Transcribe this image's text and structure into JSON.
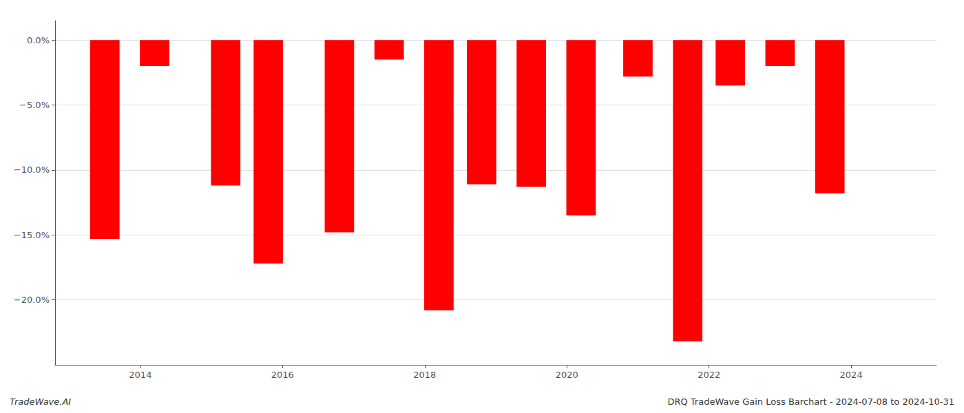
{
  "chart_data": {
    "type": "bar",
    "x": [
      2013.5,
      2014.2,
      2015.2,
      2015.8,
      2016.8,
      2017.5,
      2018.2,
      2018.8,
      2019.5,
      2020.2,
      2021.0,
      2021.7,
      2022.3,
      2023.0,
      2023.7
    ],
    "values": [
      -15.3,
      -2.0,
      -11.2,
      -17.2,
      -14.8,
      -1.5,
      -20.8,
      -11.1,
      -11.3,
      -13.5,
      -2.8,
      -23.2,
      -3.5,
      -2.0,
      -11.8
    ],
    "color": "#ff0000",
    "xlim": [
      2012.8,
      2025.2
    ],
    "xticks": [
      2014,
      2016,
      2018,
      2020,
      2022,
      2024
    ],
    "ylim": [
      -25,
      1.5
    ],
    "yticks": [
      {
        "value": 0.0,
        "label": "0.0%"
      },
      {
        "value": -5.0,
        "label": "−5.0%"
      },
      {
        "value": -10.0,
        "label": "−10.0%"
      },
      {
        "value": -15.0,
        "label": "−15.0%"
      },
      {
        "value": -20.0,
        "label": "−20.0%"
      }
    ],
    "grid": true,
    "annotations": [
      "TradeWave.AI",
      "DRQ TradeWave Gain Loss Barchart - 2024-07-08 to 2024-10-31"
    ]
  }
}
